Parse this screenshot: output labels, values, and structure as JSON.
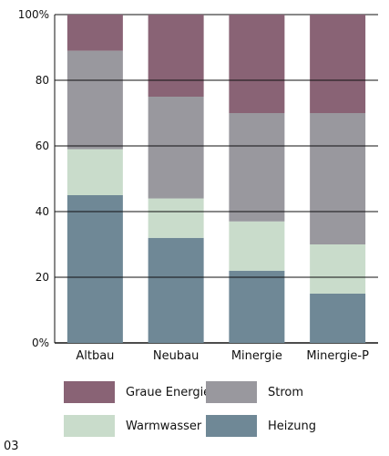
{
  "chart_data": {
    "type": "bar",
    "stacked": true,
    "categories": [
      "Altbau",
      "Neubau",
      "Minergie",
      "Minergie-P"
    ],
    "series": [
      {
        "name": "Heizung",
        "color": "#6f8896",
        "values": [
          45,
          32,
          22,
          15
        ]
      },
      {
        "name": "Warmwasser",
        "color": "#c9dccb",
        "values": [
          14,
          12,
          15,
          15
        ]
      },
      {
        "name": "Strom",
        "color": "#99989e",
        "values": [
          30,
          31,
          33,
          40
        ]
      },
      {
        "name": "Graue Energie",
        "color": "#896375",
        "values": [
          11,
          25,
          30,
          30
        ]
      }
    ],
    "ylim": [
      0,
      100
    ],
    "yticks": [
      "0%",
      "20",
      "40",
      "60",
      "80",
      "100%"
    ],
    "ytick_values": [
      0,
      20,
      40,
      60,
      80,
      100
    ],
    "grid": true,
    "legend_position": "bottom"
  },
  "legend": [
    {
      "label": "Graue Energie",
      "color": "#896375"
    },
    {
      "label": "Strom",
      "color": "#99989e"
    },
    {
      "label": "Warmwasser",
      "color": "#c9dccb"
    },
    {
      "label": "Heizung",
      "color": "#6f8896"
    }
  ],
  "figure_number": "03"
}
